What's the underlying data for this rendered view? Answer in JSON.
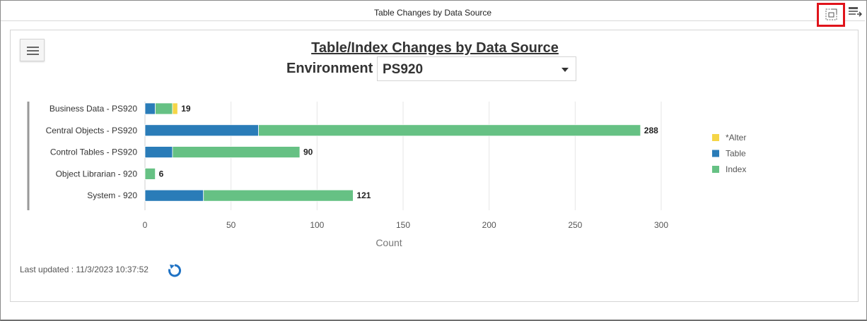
{
  "window": {
    "title": "Table Changes by Data Source"
  },
  "toolbar": {
    "expand_icon": "expand-icon",
    "settings_icon": "table-settings-icon"
  },
  "header": {
    "title": "Table/Index Changes by Data Source",
    "environment_label": "Environment",
    "environment_value": "PS920"
  },
  "footer": {
    "last_updated": "Last updated : 11/3/2023 10:37:52",
    "refresh_icon": "refresh-icon"
  },
  "colors": {
    "alter": "#f5d547",
    "table": "#2a7cb8",
    "index": "#66c184",
    "accent": "#e0141b"
  },
  "chart_data": {
    "type": "bar",
    "orientation": "horizontal",
    "stacked": true,
    "categories": [
      "Business Data - PS920",
      "Central Objects - PS920",
      "Control Tables - PS920",
      "Object Librarian - 920",
      "System - 920"
    ],
    "series": [
      {
        "name": "Table",
        "color": "#2a7cb8",
        "values": [
          6,
          66,
          16,
          0,
          34
        ]
      },
      {
        "name": "Index",
        "color": "#66c184",
        "values": [
          10,
          222,
          74,
          6,
          87
        ]
      },
      {
        "name": "*Alter",
        "color": "#f5d547",
        "values": [
          3,
          0,
          0,
          0,
          0
        ]
      }
    ],
    "totals": [
      19,
      288,
      90,
      6,
      121
    ],
    "legend_order": [
      "*Alter",
      "Table",
      "Index"
    ],
    "xlabel": "Count",
    "ylabel": "",
    "xlim": [
      0,
      300
    ],
    "xticks": [
      0,
      50,
      100,
      150,
      200,
      250,
      300
    ],
    "grid": true,
    "legend_position": "right"
  }
}
